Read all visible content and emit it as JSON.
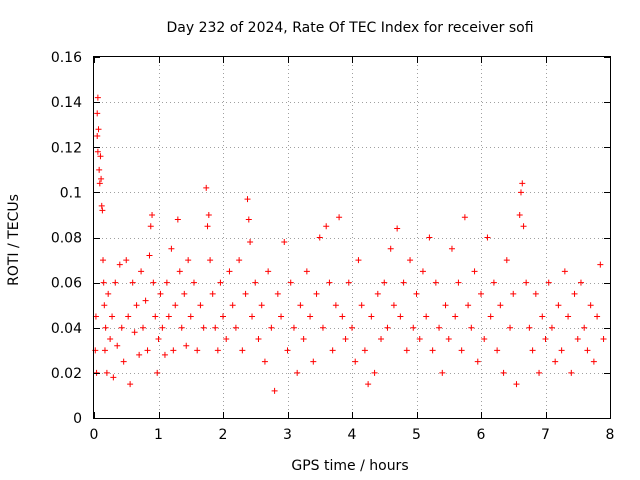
{
  "chart_data": {
    "type": "scatter",
    "title": "Day 232 of 2024, Rate Of TEC Index for receiver sofi",
    "xlabel": "GPS time / hours",
    "ylabel": "ROTI / TECUs",
    "xlim": [
      0,
      8
    ],
    "ylim": [
      0,
      0.16
    ],
    "x_ticks": [
      0,
      1,
      2,
      3,
      4,
      5,
      6,
      7,
      8
    ],
    "x_tick_labels": [
      "0",
      "1",
      "2",
      "3",
      "4",
      "5",
      "6",
      "7",
      "8"
    ],
    "y_ticks": [
      0,
      0.02,
      0.04,
      0.06,
      0.08,
      0.1,
      0.12,
      0.14,
      0.16
    ],
    "y_tick_labels": [
      "0",
      "0.02",
      "0.04",
      "0.06",
      "0.08",
      "0.1",
      "0.12",
      "0.14",
      "0.16"
    ],
    "grid": true,
    "marker": "+",
    "marker_color": "#ff0000",
    "series": [
      {
        "name": "ROTI",
        "points": [
          [
            0.02,
            0.03
          ],
          [
            0.03,
            0.045
          ],
          [
            0.04,
            0.02
          ],
          [
            0.05,
            0.125
          ],
          [
            0.05,
            0.135
          ],
          [
            0.06,
            0.142
          ],
          [
            0.06,
            0.118
          ],
          [
            0.07,
            0.128
          ],
          [
            0.08,
            0.11
          ],
          [
            0.09,
            0.104
          ],
          [
            0.1,
            0.116
          ],
          [
            0.11,
            0.106
          ],
          [
            0.12,
            0.094
          ],
          [
            0.13,
            0.092
          ],
          [
            0.14,
            0.07
          ],
          [
            0.15,
            0.06
          ],
          [
            0.16,
            0.05
          ],
          [
            0.17,
            0.03
          ],
          [
            0.18,
            0.04
          ],
          [
            0.2,
            0.02
          ],
          [
            0.22,
            0.055
          ],
          [
            0.25,
            0.035
          ],
          [
            0.28,
            0.045
          ],
          [
            0.3,
            0.018
          ],
          [
            0.33,
            0.06
          ],
          [
            0.36,
            0.032
          ],
          [
            0.4,
            0.068
          ],
          [
            0.43,
            0.04
          ],
          [
            0.46,
            0.025
          ],
          [
            0.5,
            0.07
          ],
          [
            0.53,
            0.045
          ],
          [
            0.56,
            0.015
          ],
          [
            0.6,
            0.06
          ],
          [
            0.63,
            0.038
          ],
          [
            0.66,
            0.05
          ],
          [
            0.7,
            0.028
          ],
          [
            0.73,
            0.065
          ],
          [
            0.76,
            0.04
          ],
          [
            0.8,
            0.052
          ],
          [
            0.83,
            0.03
          ],
          [
            0.86,
            0.072
          ],
          [
            0.88,
            0.085
          ],
          [
            0.9,
            0.09
          ],
          [
            0.92,
            0.06
          ],
          [
            0.95,
            0.045
          ],
          [
            0.98,
            0.02
          ],
          [
            1.0,
            0.035
          ],
          [
            1.03,
            0.055
          ],
          [
            1.06,
            0.04
          ],
          [
            1.1,
            0.028
          ],
          [
            1.13,
            0.06
          ],
          [
            1.16,
            0.045
          ],
          [
            1.2,
            0.075
          ],
          [
            1.23,
            0.03
          ],
          [
            1.26,
            0.05
          ],
          [
            1.3,
            0.088
          ],
          [
            1.33,
            0.065
          ],
          [
            1.36,
            0.04
          ],
          [
            1.4,
            0.055
          ],
          [
            1.43,
            0.032
          ],
          [
            1.46,
            0.07
          ],
          [
            1.5,
            0.045
          ],
          [
            1.55,
            0.06
          ],
          [
            1.6,
            0.03
          ],
          [
            1.65,
            0.05
          ],
          [
            1.7,
            0.04
          ],
          [
            1.74,
            0.102
          ],
          [
            1.76,
            0.085
          ],
          [
            1.78,
            0.09
          ],
          [
            1.8,
            0.07
          ],
          [
            1.84,
            0.055
          ],
          [
            1.88,
            0.04
          ],
          [
            1.92,
            0.03
          ],
          [
            1.96,
            0.06
          ],
          [
            2.0,
            0.045
          ],
          [
            2.05,
            0.035
          ],
          [
            2.1,
            0.065
          ],
          [
            2.15,
            0.05
          ],
          [
            2.2,
            0.04
          ],
          [
            2.25,
            0.07
          ],
          [
            2.3,
            0.03
          ],
          [
            2.35,
            0.055
          ],
          [
            2.38,
            0.097
          ],
          [
            2.4,
            0.088
          ],
          [
            2.42,
            0.078
          ],
          [
            2.45,
            0.045
          ],
          [
            2.5,
            0.06
          ],
          [
            2.55,
            0.035
          ],
          [
            2.6,
            0.05
          ],
          [
            2.65,
            0.025
          ],
          [
            2.7,
            0.065
          ],
          [
            2.75,
            0.04
          ],
          [
            2.8,
            0.012
          ],
          [
            2.85,
            0.055
          ],
          [
            2.9,
            0.045
          ],
          [
            2.95,
            0.078
          ],
          [
            3.0,
            0.03
          ],
          [
            3.05,
            0.06
          ],
          [
            3.1,
            0.04
          ],
          [
            3.15,
            0.02
          ],
          [
            3.2,
            0.05
          ],
          [
            3.25,
            0.035
          ],
          [
            3.3,
            0.065
          ],
          [
            3.35,
            0.045
          ],
          [
            3.4,
            0.025
          ],
          [
            3.45,
            0.055
          ],
          [
            3.5,
            0.08
          ],
          [
            3.55,
            0.04
          ],
          [
            3.6,
            0.085
          ],
          [
            3.65,
            0.06
          ],
          [
            3.7,
            0.03
          ],
          [
            3.75,
            0.05
          ],
          [
            3.8,
            0.089
          ],
          [
            3.85,
            0.045
          ],
          [
            3.9,
            0.035
          ],
          [
            3.95,
            0.06
          ],
          [
            4.0,
            0.04
          ],
          [
            4.05,
            0.025
          ],
          [
            4.1,
            0.07
          ],
          [
            4.15,
            0.05
          ],
          [
            4.2,
            0.03
          ],
          [
            4.25,
            0.015
          ],
          [
            4.3,
            0.045
          ],
          [
            4.35,
            0.02
          ],
          [
            4.4,
            0.055
          ],
          [
            4.45,
            0.035
          ],
          [
            4.5,
            0.06
          ],
          [
            4.55,
            0.04
          ],
          [
            4.6,
            0.075
          ],
          [
            4.65,
            0.05
          ],
          [
            4.7,
            0.084
          ],
          [
            4.75,
            0.045
          ],
          [
            4.8,
            0.06
          ],
          [
            4.85,
            0.03
          ],
          [
            4.9,
            0.07
          ],
          [
            4.95,
            0.04
          ],
          [
            5.0,
            0.055
          ],
          [
            5.05,
            0.035
          ],
          [
            5.1,
            0.065
          ],
          [
            5.15,
            0.045
          ],
          [
            5.2,
            0.08
          ],
          [
            5.25,
            0.03
          ],
          [
            5.3,
            0.06
          ],
          [
            5.35,
            0.04
          ],
          [
            5.4,
            0.02
          ],
          [
            5.45,
            0.05
          ],
          [
            5.5,
            0.035
          ],
          [
            5.55,
            0.075
          ],
          [
            5.6,
            0.045
          ],
          [
            5.65,
            0.06
          ],
          [
            5.7,
            0.03
          ],
          [
            5.75,
            0.089
          ],
          [
            5.8,
            0.05
          ],
          [
            5.85,
            0.04
          ],
          [
            5.9,
            0.065
          ],
          [
            5.95,
            0.025
          ],
          [
            6.0,
            0.055
          ],
          [
            6.05,
            0.035
          ],
          [
            6.1,
            0.08
          ],
          [
            6.15,
            0.045
          ],
          [
            6.2,
            0.06
          ],
          [
            6.25,
            0.03
          ],
          [
            6.3,
            0.05
          ],
          [
            6.35,
            0.02
          ],
          [
            6.4,
            0.07
          ],
          [
            6.45,
            0.04
          ],
          [
            6.5,
            0.055
          ],
          [
            6.55,
            0.015
          ],
          [
            6.6,
            0.09
          ],
          [
            6.62,
            0.1
          ],
          [
            6.64,
            0.104
          ],
          [
            6.66,
            0.085
          ],
          [
            6.7,
            0.06
          ],
          [
            6.75,
            0.04
          ],
          [
            6.8,
            0.03
          ],
          [
            6.85,
            0.055
          ],
          [
            6.9,
            0.02
          ],
          [
            6.95,
            0.045
          ],
          [
            7.0,
            0.035
          ],
          [
            7.05,
            0.06
          ],
          [
            7.1,
            0.04
          ],
          [
            7.15,
            0.025
          ],
          [
            7.2,
            0.05
          ],
          [
            7.25,
            0.03
          ],
          [
            7.3,
            0.065
          ],
          [
            7.35,
            0.045
          ],
          [
            7.4,
            0.02
          ],
          [
            7.45,
            0.055
          ],
          [
            7.5,
            0.035
          ],
          [
            7.55,
            0.06
          ],
          [
            7.6,
            0.04
          ],
          [
            7.65,
            0.03
          ],
          [
            7.7,
            0.05
          ],
          [
            7.75,
            0.025
          ],
          [
            7.8,
            0.045
          ],
          [
            7.85,
            0.068
          ],
          [
            7.9,
            0.035
          ]
        ]
      }
    ]
  }
}
